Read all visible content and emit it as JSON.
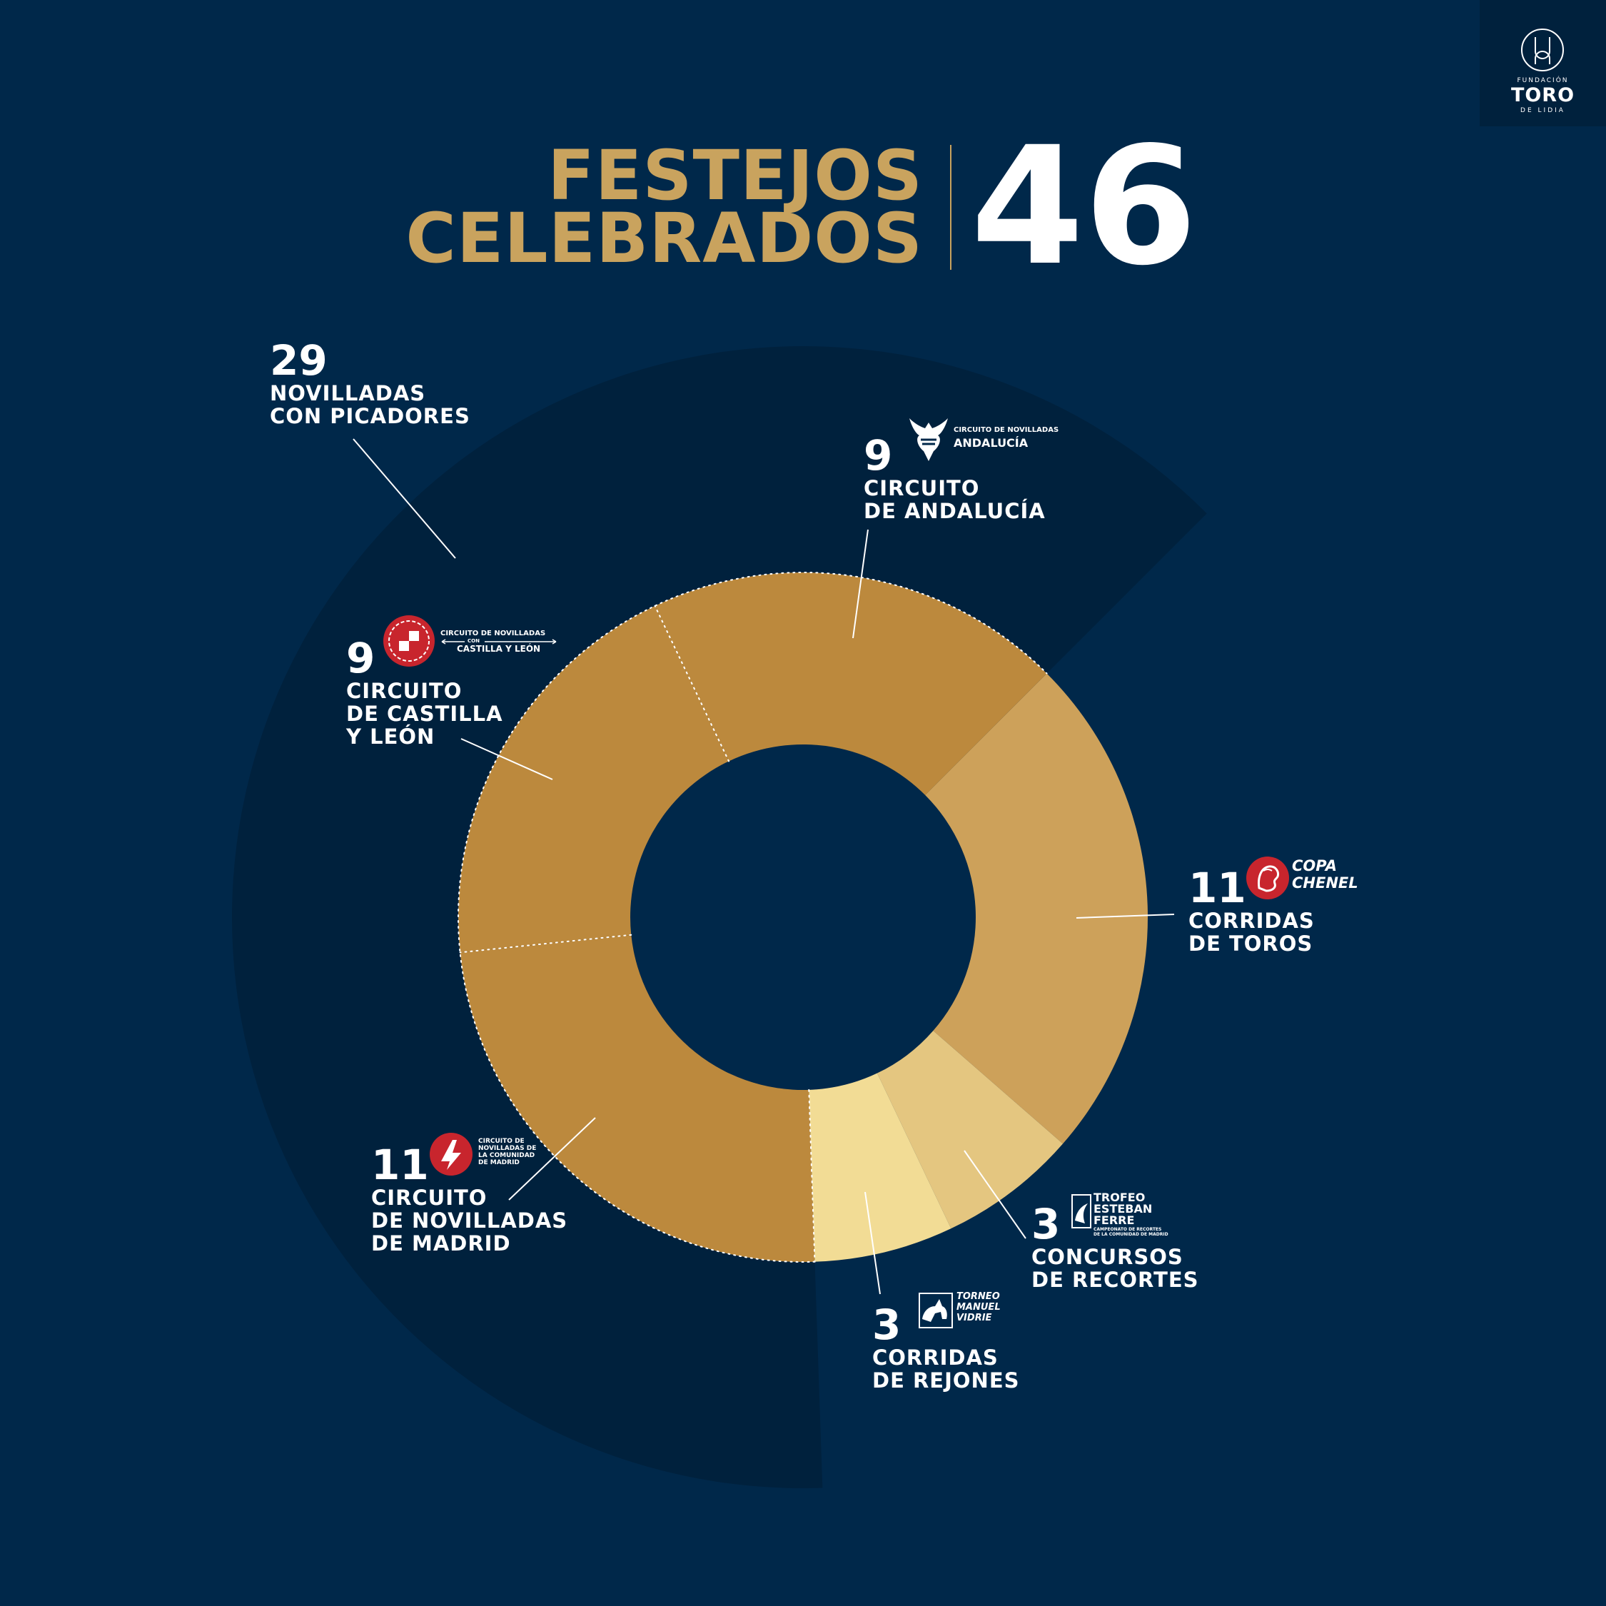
{
  "brand": {
    "line1": "FUNDACIÓN",
    "line2": "TORO",
    "line3": "DE LIDIA"
  },
  "title": {
    "line1": "FESTEJOS",
    "line2": "CELEBRADOS",
    "total": "46"
  },
  "colors": {
    "background": "#00284a",
    "outer_ring": "#00213d",
    "novilladas": "#bc893d",
    "corridas_toros": "#cda15a",
    "recortes": "#e4c680",
    "rejones": "#f2dc95",
    "title_gold": "#c9a35e",
    "logo_red": "#c8252d"
  },
  "chart_data": {
    "type": "pie",
    "title": "FESTEJOS CELEBRADOS",
    "total": 46,
    "outer_series": [
      {
        "label": "NOVILLADAS CON PICADORES",
        "value": 29
      }
    ],
    "slices": [
      {
        "value": 11,
        "label": "CORRIDAS DE TOROS",
        "logo": "copa-chenel"
      },
      {
        "value": 3,
        "label": "CONCURSOS DE RECORTES",
        "logo": "trofeo-esteban-ferre"
      },
      {
        "value": 3,
        "label": "CORRIDAS DE REJONES",
        "logo": "torneo-manuel-vidrie"
      },
      {
        "value": 11,
        "label": "CIRCUITO DE NOVILLADAS DE MADRID",
        "logo": "circuito-madrid",
        "group": "novilladas"
      },
      {
        "value": 9,
        "label": "CIRCUITO DE CASTILLA Y LEÓN",
        "logo": "circuito-castilla-leon",
        "group": "novilladas"
      },
      {
        "value": 9,
        "label": "CIRCUITO DE ANDALUCÍA",
        "logo": "circuito-andalucia",
        "group": "novilladas"
      }
    ]
  },
  "labels": {
    "novilladas": {
      "num": "29",
      "line1": "NOVILLADAS",
      "line2": "CON PICADORES"
    },
    "andalucia": {
      "num": "9",
      "line1": "CIRCUITO",
      "line2": "DE ANDALUCÍA",
      "logo_line1": "CIRCUITO DE NOVILLADAS",
      "logo_line2": "ANDALUCÍA"
    },
    "castilla": {
      "num": "9",
      "line1": "CIRCUITO",
      "line2": "DE CASTILLA",
      "line3": "Y LEÓN",
      "logo_line1": "CIRCUITO DE NOVILLADAS",
      "logo_line2": "CON",
      "logo_line3": "CASTILLA Y LEÓN"
    },
    "toros": {
      "num": "11",
      "line1": "CORRIDAS",
      "line2": "DE TOROS",
      "logo_line1": "COPA",
      "logo_line2": "CHENEL"
    },
    "madrid": {
      "num": "11",
      "line1": "CIRCUITO",
      "line2": "DE NOVILLADAS",
      "line3": "DE MADRID",
      "logo_line1": "CIRCUITO DE",
      "logo_line2": "NOVILLADAS DE",
      "logo_line3": "LA COMUNIDAD",
      "logo_line4": "DE MADRID"
    },
    "recortes": {
      "num": "3",
      "line1": "CONCURSOS",
      "line2": "DE RECORTES",
      "logo_line1": "TROFEO",
      "logo_line2": "ESTEBAN",
      "logo_line3": "FERRE",
      "logo_line4": "CAMPEONATO DE RECORTES",
      "logo_line5": "DE LA COMUNIDAD DE MADRID"
    },
    "rejones": {
      "num": "3",
      "line1": "CORRIDAS",
      "line2": "DE REJONES",
      "logo_line1": "TORNEO",
      "logo_line2": "MANUEL",
      "logo_line3": "VIDRIE"
    }
  }
}
